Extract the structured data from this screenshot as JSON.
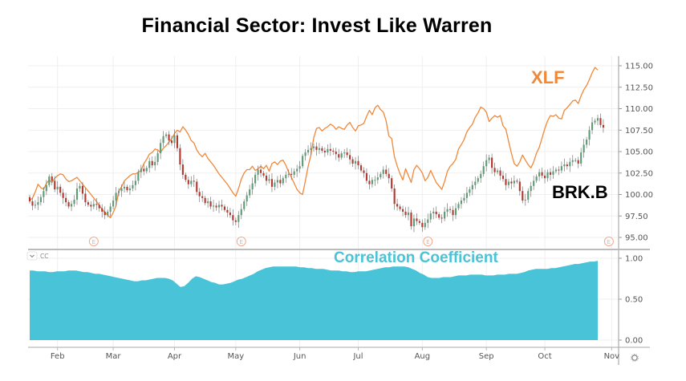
{
  "chart_data": {
    "type": "line",
    "title": "Financial Sector: Invest Like Warren",
    "price_pane": {
      "ylim": [
        94,
        116
      ],
      "y_ticks": [
        "95.00",
        "97.50",
        "100.00",
        "102.50",
        "105.00",
        "107.50",
        "110.00",
        "112.50",
        "115.00"
      ],
      "y_tick_values": [
        95,
        97.5,
        100,
        102.5,
        105,
        107.5,
        110,
        112.5,
        115
      ],
      "grid": true,
      "series": [
        {
          "name": "XLF",
          "type": "line",
          "color": "#f0883a",
          "label": "XLF",
          "values": [
            99.3,
            99.6,
            100.3,
            101.2,
            100.8,
            100.6,
            101.3,
            101.7,
            101.4,
            101.9,
            102.2,
            102.4,
            102.3,
            101.8,
            101.5,
            101.6,
            101.8,
            102.0,
            101.6,
            101.2,
            100.8,
            100.4,
            100.0,
            99.6,
            99.2,
            98.7,
            98.3,
            97.9,
            97.6,
            97.3,
            97.9,
            98.7,
            100.4,
            100.9,
            101.6,
            101.9,
            102.2,
            102.4,
            102.4,
            102.6,
            102.8,
            103.6,
            104.1,
            104.7,
            104.9,
            105.3,
            105.2,
            104.9,
            105.4,
            105.7,
            106.1,
            106.5,
            107.1,
            107.5,
            107.3,
            107.9,
            107.5,
            107.0,
            106.3,
            106.0,
            105.2,
            104.7,
            104.4,
            104.8,
            104.2,
            103.8,
            103.4,
            102.9,
            102.4,
            102.0,
            101.6,
            101.2,
            100.7,
            100.2,
            99.8,
            100.7,
            101.8,
            102.5,
            102.9,
            102.9,
            103.3,
            102.8,
            103.0,
            103.3,
            103.0,
            103.4,
            102.7,
            103.6,
            103.8,
            103.5,
            103.9,
            104.0,
            103.4,
            102.6,
            102.0,
            101.3,
            100.6,
            100.2,
            100.0,
            101.6,
            103.3,
            104.6,
            106.6,
            107.7,
            107.8,
            107.4,
            107.7,
            107.9,
            108.2,
            108.0,
            107.6,
            107.9,
            107.7,
            107.6,
            108.1,
            108.4,
            107.8,
            107.4,
            108.0,
            108.1,
            108.3,
            109.1,
            109.8,
            109.3,
            110.1,
            110.4,
            109.9,
            109.6,
            108.6,
            106.8,
            106.5,
            104.4,
            103.3,
            102.4,
            101.7,
            103.0,
            102.2,
            101.4,
            102.9,
            103.4,
            103.0,
            102.5,
            101.6,
            102.0,
            102.8,
            102.1,
            101.4,
            101.0,
            100.6,
            101.5,
            102.7,
            103.3,
            103.6,
            104.1,
            105.3,
            105.8,
            106.4,
            107.3,
            107.8,
            108.2,
            109.0,
            109.5,
            110.2,
            110.0,
            109.6,
            108.5,
            108.9,
            109.2,
            109.0,
            109.2,
            108.0,
            107.6,
            106.2,
            104.8,
            103.6,
            103.3,
            103.8,
            104.6,
            104.0,
            103.5,
            103.1,
            103.8,
            104.8,
            105.5,
            106.6,
            107.7,
            108.6,
            109.2,
            109.1,
            109.3,
            108.9,
            108.8,
            109.8,
            110.1,
            110.5,
            110.9,
            111.0,
            110.6,
            111.5,
            112.2,
            112.7,
            113.4,
            114.2,
            114.8,
            114.5
          ]
        },
        {
          "name": "BRK.B",
          "type": "candlestick",
          "up_color": "#5e9c78",
          "down_color": "#b23a30",
          "label": "BRK.B",
          "closes": [
            99.2,
            98.7,
            98.8,
            99.1,
            99.7,
            100.4,
            101.1,
            102.1,
            101.6,
            100.6,
            100.9,
            100.2,
            99.6,
            99.1,
            98.6,
            98.9,
            99.4,
            100.7,
            101.0,
            100.1,
            99.1,
            98.8,
            98.6,
            98.9,
            98.8,
            98.4,
            98.0,
            97.6,
            98.0,
            98.6,
            99.3,
            100.2,
            100.4,
            100.7,
            100.9,
            100.5,
            100.7,
            101.1,
            101.6,
            102.6,
            103.0,
            102.7,
            103.1,
            103.9,
            103.4,
            103.8,
            104.8,
            106.0,
            106.8,
            107.0,
            106.3,
            106.0,
            106.9,
            105.4,
            103.5,
            102.3,
            101.7,
            101.2,
            101.6,
            101.5,
            100.3,
            99.8,
            99.6,
            99.0,
            99.2,
            98.6,
            98.7,
            98.5,
            98.8,
            98.6,
            98.2,
            97.9,
            97.6,
            97.0,
            96.8,
            97.6,
            98.3,
            99.2,
            99.9,
            100.6,
            101.3,
            102.3,
            102.9,
            102.5,
            102.2,
            101.6,
            101.8,
            100.9,
            101.4,
            101.7,
            101.3,
            101.9,
            102.3,
            102.4,
            102.3,
            102.7,
            103.0,
            103.3,
            104.5,
            104.9,
            105.2,
            105.4,
            105.6,
            105.2,
            105.4,
            105.1,
            104.9,
            105.3,
            105.1,
            105.0,
            104.7,
            104.3,
            104.8,
            104.9,
            104.6,
            104.1,
            103.6,
            103.9,
            103.4,
            102.8,
            102.5,
            101.6,
            101.2,
            101.7,
            101.7,
            102.0,
            102.4,
            102.9,
            102.4,
            101.9,
            100.7,
            98.9,
            98.6,
            98.3,
            98.0,
            97.6,
            97.9,
            96.3,
            97.2,
            96.9,
            96.7,
            96.2,
            96.7,
            97.1,
            97.8,
            98.0,
            97.7,
            97.3,
            97.2,
            98.0,
            98.3,
            98.2,
            97.6,
            98.4,
            98.9,
            99.3,
            99.6,
            100.2,
            100.6,
            101.1,
            101.5,
            101.9,
            102.4,
            103.3,
            104.0,
            104.3,
            103.1,
            102.6,
            102.8,
            102.2,
            101.8,
            101.1,
            101.5,
            101.3,
            101.6,
            101.5,
            100.4,
            99.3,
            99.4,
            100.4,
            101.0,
            101.6,
            102.1,
            102.6,
            102.2,
            101.9,
            102.6,
            102.3,
            102.7,
            102.9,
            102.8,
            103.3,
            103.5,
            103.3,
            103.8,
            104.0,
            104.0,
            103.6,
            104.9,
            105.8,
            106.4,
            107.5,
            108.4,
            108.6,
            108.9,
            108.1,
            107.8
          ]
        }
      ]
    },
    "correlation_pane": {
      "label": "CC",
      "type": "area",
      "color": "#49c3d7",
      "annotation": "Correlation Coefficient",
      "ylim": [
        0,
        1.05
      ],
      "y_ticks": [
        "0.00",
        "0.50",
        "1.00"
      ],
      "y_tick_values": [
        0,
        0.5,
        1.0
      ],
      "values": [
        0.85,
        0.85,
        0.84,
        0.84,
        0.84,
        0.83,
        0.83,
        0.84,
        0.84,
        0.84,
        0.85,
        0.85,
        0.85,
        0.84,
        0.83,
        0.83,
        0.82,
        0.81,
        0.81,
        0.8,
        0.79,
        0.78,
        0.77,
        0.76,
        0.75,
        0.74,
        0.73,
        0.72,
        0.72,
        0.73,
        0.73,
        0.74,
        0.75,
        0.76,
        0.76,
        0.76,
        0.75,
        0.73,
        0.69,
        0.65,
        0.66,
        0.7,
        0.75,
        0.78,
        0.77,
        0.75,
        0.73,
        0.71,
        0.7,
        0.68,
        0.68,
        0.69,
        0.7,
        0.72,
        0.74,
        0.75,
        0.77,
        0.79,
        0.81,
        0.84,
        0.86,
        0.88,
        0.89,
        0.9,
        0.9,
        0.9,
        0.9,
        0.9,
        0.9,
        0.9,
        0.89,
        0.89,
        0.88,
        0.88,
        0.87,
        0.87,
        0.87,
        0.86,
        0.85,
        0.85,
        0.85,
        0.84,
        0.84,
        0.83,
        0.83,
        0.84,
        0.84,
        0.84,
        0.85,
        0.86,
        0.87,
        0.88,
        0.89,
        0.89,
        0.9,
        0.9,
        0.9,
        0.9,
        0.89,
        0.87,
        0.85,
        0.82,
        0.8,
        0.77,
        0.76,
        0.76,
        0.76,
        0.77,
        0.77,
        0.77,
        0.78,
        0.79,
        0.79,
        0.79,
        0.8,
        0.8,
        0.8,
        0.8,
        0.79,
        0.79,
        0.79,
        0.8,
        0.8,
        0.8,
        0.81,
        0.81,
        0.81,
        0.82,
        0.83,
        0.85,
        0.86,
        0.87,
        0.87,
        0.87,
        0.87,
        0.88,
        0.88,
        0.89,
        0.9,
        0.91,
        0.92,
        0.93,
        0.93,
        0.94,
        0.95,
        0.96,
        0.96,
        0.97
      ]
    },
    "x_axis": {
      "months": [
        "Feb",
        "Mar",
        "Apr",
        "May",
        "Jun",
        "Jul",
        "Aug",
        "Sep",
        "Oct",
        "Nov"
      ],
      "month_day_index": [
        10,
        30,
        52,
        74,
        97,
        118,
        141,
        164,
        185,
        209
      ]
    },
    "earnings_markers": [
      {
        "label": "E",
        "index": 23
      },
      {
        "label": "E",
        "index": 76
      },
      {
        "label": "E",
        "index": 143
      },
      {
        "label": "E",
        "index": 208
      }
    ],
    "settings_icon": "gear-icon"
  }
}
